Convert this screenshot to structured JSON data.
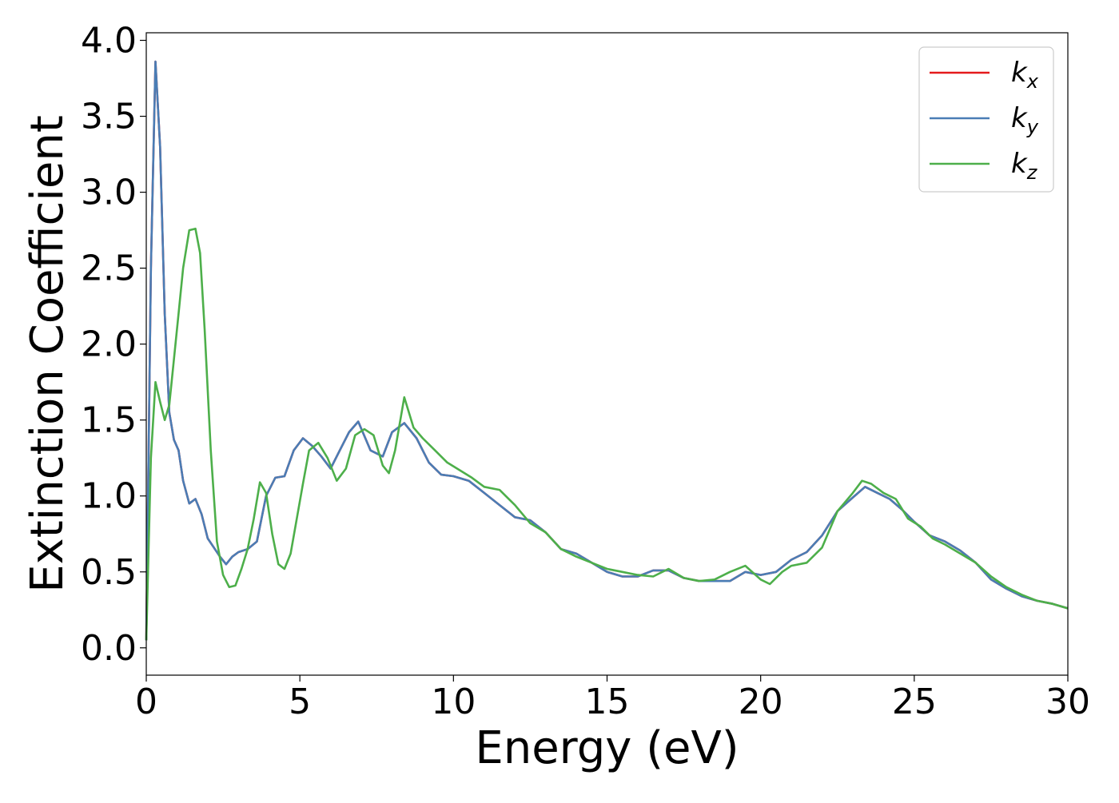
{
  "chart_data": {
    "type": "line",
    "xlabel": "Energy (eV)",
    "ylabel": "Extinction Coefficient",
    "xlim": [
      0,
      30
    ],
    "ylim": [
      -0.18,
      4.05
    ],
    "xticks": [
      0,
      5,
      10,
      15,
      20,
      25,
      30
    ],
    "yticks": [
      0.0,
      0.5,
      1.0,
      1.5,
      2.0,
      2.5,
      3.0,
      3.5,
      4.0
    ],
    "xtick_labels": [
      "0",
      "5",
      "10",
      "15",
      "20",
      "25",
      "30"
    ],
    "ytick_labels": [
      "0.0",
      "0.5",
      "1.0",
      "1.5",
      "2.0",
      "2.5",
      "3.0",
      "3.5",
      "4.0"
    ],
    "grid": false,
    "legend_position": "top-right",
    "series": [
      {
        "name": "k_x",
        "legend_base": "k",
        "legend_sub": "x",
        "color": "#e41a1c",
        "x": [
          0,
          0.15,
          0.3,
          0.45,
          0.6,
          0.75,
          0.9,
          1.05,
          1.2,
          1.4,
          1.6,
          1.8,
          2.0,
          2.2,
          2.4,
          2.6,
          2.8,
          3.0,
          3.3,
          3.6,
          3.9,
          4.2,
          4.5,
          4.8,
          5.1,
          5.4,
          5.7,
          6.0,
          6.3,
          6.6,
          6.9,
          7.3,
          7.7,
          8.0,
          8.4,
          8.8,
          9.2,
          9.6,
          10.0,
          10.5,
          11.0,
          11.5,
          12.0,
          12.5,
          13.0,
          13.5,
          14.0,
          14.5,
          15.0,
          15.5,
          16.0,
          16.5,
          17.0,
          17.5,
          18.0,
          18.5,
          19.0,
          19.5,
          20.0,
          20.5,
          21.0,
          21.5,
          22.0,
          22.5,
          23.0,
          23.4,
          23.8,
          24.2,
          24.6,
          25.0,
          25.5,
          26.0,
          26.5,
          27.0,
          27.5,
          28.0,
          28.5,
          29.0,
          29.5,
          30.0
        ],
        "y": [
          0.05,
          2.5,
          3.86,
          3.3,
          2.2,
          1.55,
          1.37,
          1.3,
          1.1,
          0.95,
          0.98,
          0.88,
          0.72,
          0.66,
          0.6,
          0.55,
          0.6,
          0.63,
          0.65,
          0.7,
          1.0,
          1.12,
          1.13,
          1.3,
          1.38,
          1.33,
          1.26,
          1.18,
          1.3,
          1.42,
          1.49,
          1.3,
          1.26,
          1.42,
          1.48,
          1.38,
          1.22,
          1.14,
          1.13,
          1.1,
          1.02,
          0.94,
          0.86,
          0.84,
          0.76,
          0.65,
          0.62,
          0.56,
          0.5,
          0.47,
          0.47,
          0.51,
          0.51,
          0.46,
          0.44,
          0.44,
          0.44,
          0.5,
          0.48,
          0.5,
          0.58,
          0.63,
          0.74,
          0.9,
          0.99,
          1.06,
          1.02,
          0.98,
          0.91,
          0.83,
          0.74,
          0.7,
          0.64,
          0.56,
          0.45,
          0.39,
          0.34,
          0.31,
          0.29,
          0.26
        ]
      },
      {
        "name": "k_y",
        "legend_base": "k",
        "legend_sub": "y",
        "color": "#4a7db5",
        "x": [
          0,
          0.15,
          0.3,
          0.45,
          0.6,
          0.75,
          0.9,
          1.05,
          1.2,
          1.4,
          1.6,
          1.8,
          2.0,
          2.2,
          2.4,
          2.6,
          2.8,
          3.0,
          3.3,
          3.6,
          3.9,
          4.2,
          4.5,
          4.8,
          5.1,
          5.4,
          5.7,
          6.0,
          6.3,
          6.6,
          6.9,
          7.3,
          7.7,
          8.0,
          8.4,
          8.8,
          9.2,
          9.6,
          10.0,
          10.5,
          11.0,
          11.5,
          12.0,
          12.5,
          13.0,
          13.5,
          14.0,
          14.5,
          15.0,
          15.5,
          16.0,
          16.5,
          17.0,
          17.5,
          18.0,
          18.5,
          19.0,
          19.5,
          20.0,
          20.5,
          21.0,
          21.5,
          22.0,
          22.5,
          23.0,
          23.4,
          23.8,
          24.2,
          24.6,
          25.0,
          25.5,
          26.0,
          26.5,
          27.0,
          27.5,
          28.0,
          28.5,
          29.0,
          29.5,
          30.0
        ],
        "y": [
          0.05,
          2.5,
          3.86,
          3.3,
          2.2,
          1.55,
          1.37,
          1.3,
          1.1,
          0.95,
          0.98,
          0.88,
          0.72,
          0.66,
          0.6,
          0.55,
          0.6,
          0.63,
          0.65,
          0.7,
          1.0,
          1.12,
          1.13,
          1.3,
          1.38,
          1.33,
          1.26,
          1.18,
          1.3,
          1.42,
          1.49,
          1.3,
          1.26,
          1.42,
          1.48,
          1.38,
          1.22,
          1.14,
          1.13,
          1.1,
          1.02,
          0.94,
          0.86,
          0.84,
          0.76,
          0.65,
          0.62,
          0.56,
          0.5,
          0.47,
          0.47,
          0.51,
          0.51,
          0.46,
          0.44,
          0.44,
          0.44,
          0.5,
          0.48,
          0.5,
          0.58,
          0.63,
          0.74,
          0.9,
          0.99,
          1.06,
          1.02,
          0.98,
          0.91,
          0.83,
          0.74,
          0.7,
          0.64,
          0.56,
          0.45,
          0.39,
          0.34,
          0.31,
          0.29,
          0.26
        ]
      },
      {
        "name": "k_z",
        "legend_base": "k",
        "legend_sub": "z",
        "color": "#4daf4a",
        "x": [
          0,
          0.15,
          0.3,
          0.45,
          0.6,
          0.75,
          0.9,
          1.05,
          1.2,
          1.4,
          1.6,
          1.75,
          1.9,
          2.1,
          2.3,
          2.5,
          2.7,
          2.9,
          3.1,
          3.3,
          3.5,
          3.7,
          3.9,
          4.1,
          4.3,
          4.5,
          4.7,
          4.9,
          5.1,
          5.3,
          5.6,
          5.9,
          6.2,
          6.5,
          6.8,
          7.1,
          7.4,
          7.7,
          7.9,
          8.1,
          8.4,
          8.7,
          9.0,
          9.4,
          9.8,
          10.2,
          10.6,
          11.0,
          11.5,
          12.0,
          12.5,
          13.0,
          13.5,
          14.0,
          14.5,
          15.0,
          15.5,
          16.0,
          16.5,
          17.0,
          17.5,
          18.0,
          18.5,
          19.0,
          19.5,
          20.0,
          20.3,
          20.7,
          21.0,
          21.5,
          22.0,
          22.5,
          23.0,
          23.3,
          23.6,
          24.0,
          24.4,
          24.8,
          25.2,
          25.6,
          26.0,
          26.5,
          27.0,
          27.5,
          28.0,
          28.5,
          29.0,
          29.5,
          30.0
        ],
        "y": [
          0.05,
          1.25,
          1.75,
          1.62,
          1.5,
          1.6,
          1.9,
          2.2,
          2.5,
          2.75,
          2.76,
          2.6,
          2.1,
          1.3,
          0.7,
          0.48,
          0.4,
          0.41,
          0.52,
          0.65,
          0.85,
          1.09,
          1.02,
          0.75,
          0.55,
          0.52,
          0.62,
          0.85,
          1.08,
          1.3,
          1.35,
          1.25,
          1.1,
          1.18,
          1.4,
          1.44,
          1.4,
          1.2,
          1.15,
          1.3,
          1.65,
          1.45,
          1.38,
          1.3,
          1.22,
          1.17,
          1.12,
          1.06,
          1.04,
          0.94,
          0.82,
          0.76,
          0.65,
          0.6,
          0.56,
          0.52,
          0.5,
          0.48,
          0.47,
          0.52,
          0.46,
          0.44,
          0.45,
          0.5,
          0.54,
          0.45,
          0.42,
          0.5,
          0.54,
          0.56,
          0.66,
          0.9,
          1.02,
          1.1,
          1.08,
          1.02,
          0.98,
          0.85,
          0.8,
          0.72,
          0.68,
          0.62,
          0.56,
          0.47,
          0.4,
          0.35,
          0.31,
          0.29,
          0.26
        ]
      }
    ]
  }
}
